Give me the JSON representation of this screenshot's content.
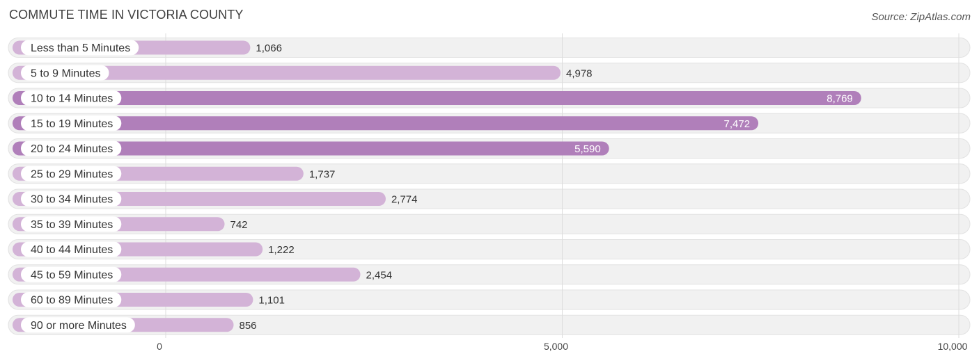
{
  "header": {
    "title": "COMMUTE TIME IN VICTORIA COUNTY",
    "source": "Source: ZipAtlas.com"
  },
  "colors": {
    "bar_light": "#d3b3d7",
    "bar_dark": "#b07fba",
    "track": "#f1f1f1",
    "track_border": "#e2e2e2",
    "grid": "#dddddd",
    "label_pill": "#ffffff"
  },
  "chart_data": {
    "type": "bar",
    "orientation": "horizontal",
    "title": "COMMUTE TIME IN VICTORIA COUNTY",
    "xlabel": "",
    "ylabel": "",
    "xlim": [
      0,
      10000
    ],
    "ticks": [
      {
        "value": 0,
        "label": "0"
      },
      {
        "value": 5000,
        "label": "5,000"
      },
      {
        "value": 10000,
        "label": "10,000"
      }
    ],
    "categories": [
      "Less than 5 Minutes",
      "5 to 9 Minutes",
      "10 to 14 Minutes",
      "15 to 19 Minutes",
      "20 to 24 Minutes",
      "25 to 29 Minutes",
      "30 to 34 Minutes",
      "35 to 39 Minutes",
      "40 to 44 Minutes",
      "45 to 59 Minutes",
      "60 to 89 Minutes",
      "90 or more Minutes"
    ],
    "values": [
      1066,
      4978,
      8769,
      7472,
      5590,
      1737,
      2774,
      742,
      1222,
      2454,
      1101,
      856
    ],
    "value_labels": [
      "1,066",
      "4,978",
      "8,769",
      "7,472",
      "5,590",
      "1,737",
      "2,774",
      "742",
      "1,222",
      "2,454",
      "1,101",
      "856"
    ]
  }
}
